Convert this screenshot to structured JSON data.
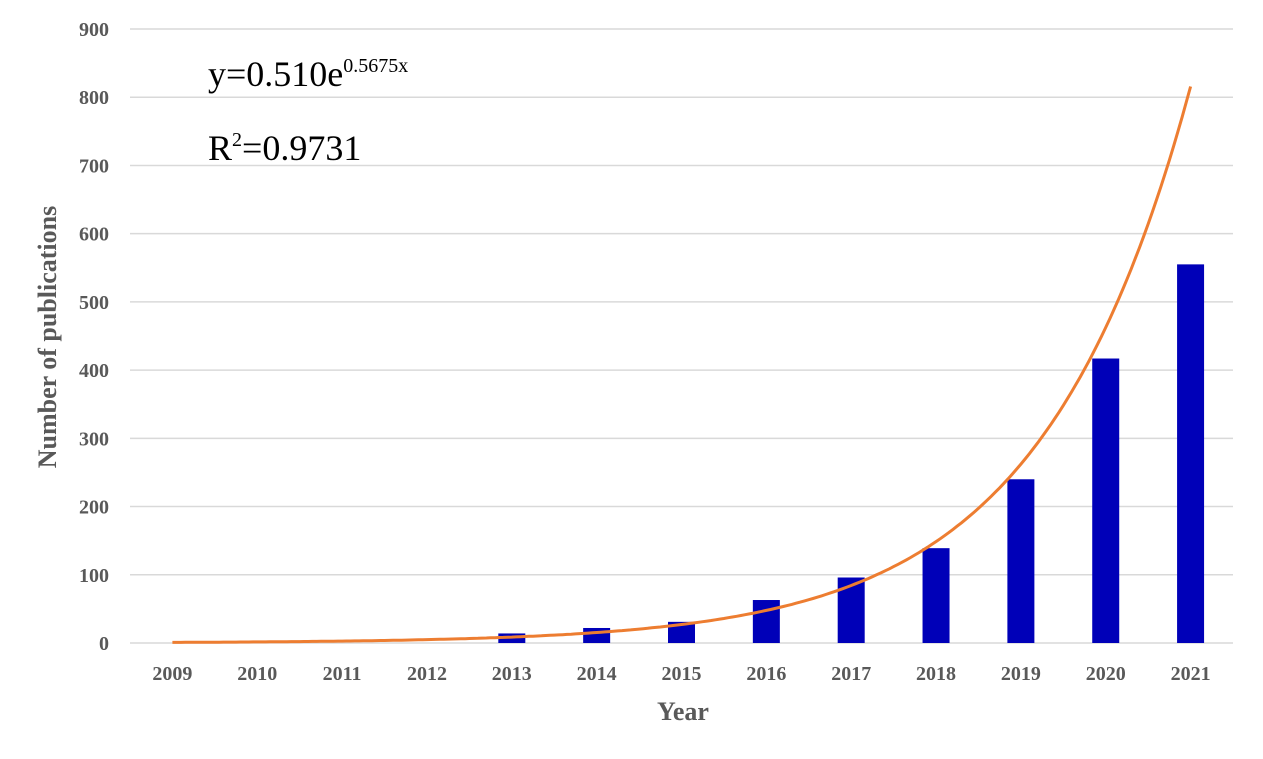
{
  "chart_data": {
    "type": "bar",
    "categories": [
      "2009",
      "2010",
      "2011",
      "2012",
      "2013",
      "2014",
      "2015",
      "2016",
      "2017",
      "2018",
      "2019",
      "2020",
      "2021"
    ],
    "values": [
      0,
      0,
      0,
      0,
      14,
      22,
      31,
      63,
      96,
      139,
      240,
      417,
      555
    ],
    "xlabel": "Year",
    "ylabel": "Number of publications",
    "ylim": [
      0,
      900
    ],
    "yticks": [
      "0",
      "100",
      "200",
      "300",
      "400",
      "500",
      "600",
      "700",
      "800",
      "900"
    ],
    "grid": true,
    "bar_color": "#0000b8",
    "trendline": {
      "type": "exponential",
      "a": 0.51,
      "b": 0.5675,
      "color": "#ed7d31",
      "equation_base": "y=0.510e",
      "equation_exponent": "0.5675x",
      "r2_label": "R",
      "r2_superscript": "2",
      "r2_value": "=0.9731"
    }
  }
}
